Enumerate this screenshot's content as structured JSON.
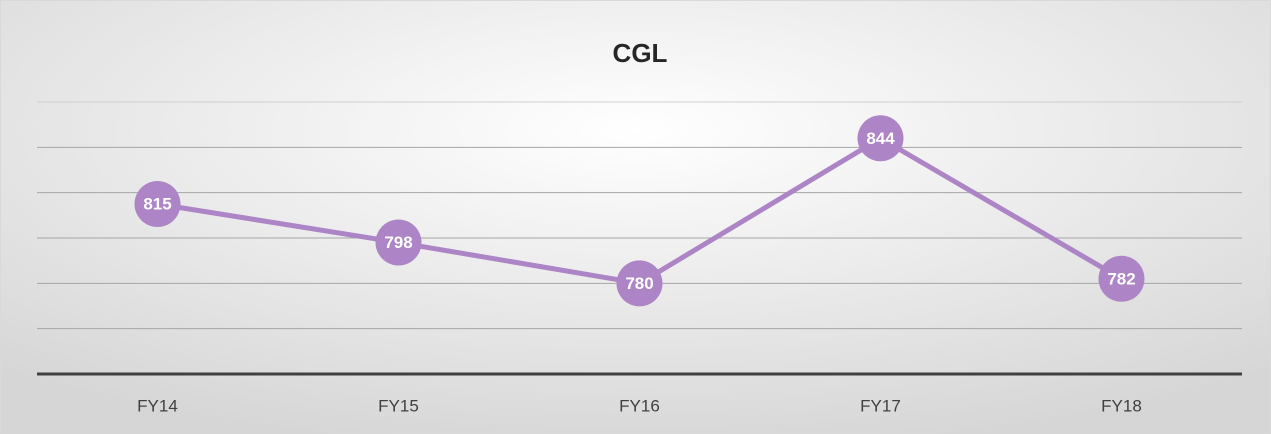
{
  "chart_data": {
    "type": "line",
    "title": "CGL",
    "categories": [
      "FY14",
      "FY15",
      "FY16",
      "FY17",
      "FY18"
    ],
    "series": [
      {
        "name": "CGL",
        "color": "#ad84c6",
        "values": [
          815,
          798,
          780,
          844,
          782
        ]
      }
    ],
    "ylim": [
      740,
      860
    ],
    "yticks": [
      740,
      760,
      780,
      800,
      820,
      840,
      860
    ],
    "grid": true,
    "legend": false
  }
}
